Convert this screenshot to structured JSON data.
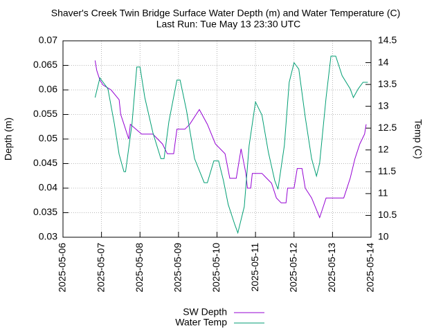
{
  "chart_data": {
    "type": "line",
    "title": "Shaver's Creek Twin Bridge Surface Water Depth (m) and Water Temperature (C)",
    "subtitle": "Last Run: Tue May 13 23:30 UTC",
    "y_label": "Depth (m)",
    "y2_label": "Temp (C)",
    "xlim": [
      "2025-05-06",
      "2025-05-14"
    ],
    "xticks": [
      "2025-05-06",
      "2025-05-07",
      "2025-05-08",
      "2025-05-09",
      "2025-05-10",
      "2025-05-11",
      "2025-05-12",
      "2025-05-13",
      "2025-05-14"
    ],
    "ylim": [
      0.03,
      0.07
    ],
    "yticks": [
      0.03,
      0.035,
      0.04,
      0.045,
      0.05,
      0.055,
      0.06,
      0.065,
      0.07
    ],
    "y2lim": [
      10,
      14.5
    ],
    "y2ticks": [
      10,
      10.5,
      11,
      11.5,
      12,
      12.5,
      13,
      13.5,
      14,
      14.5
    ],
    "grid": true,
    "legend": "bottom",
    "series": [
      {
        "name": "SW Depth",
        "color": "#9400d3",
        "x": [
          "2025-05-06 20:00",
          "2025-05-06 21:00",
          "2025-05-06 23:00",
          "2025-05-07 01:00",
          "2025-05-07 06:00",
          "2025-05-07 11:00",
          "2025-05-07 12:00",
          "2025-05-07 14:00",
          "2025-05-07 17:00",
          "2025-05-07 18:00",
          "2025-05-08 01:00",
          "2025-05-08 08:00",
          "2025-05-08 14:00",
          "2025-05-08 17:00",
          "2025-05-08 21:00",
          "2025-05-08 23:00",
          "2025-05-09 04:00",
          "2025-05-09 07:00",
          "2025-05-09 13:00",
          "2025-05-09 18:00",
          "2025-05-09 23:00",
          "2025-05-10 05:00",
          "2025-05-10 08:00",
          "2025-05-10 12:00",
          "2025-05-10 15:00",
          "2025-05-10 18:00",
          "2025-05-10 19:00",
          "2025-05-10 21:00",
          "2025-05-10 22:00",
          "2025-05-11 04:00",
          "2025-05-11 10:00",
          "2025-05-11 13:00",
          "2025-05-11 16:00",
          "2025-05-11 19:00",
          "2025-05-11 20:00",
          "2025-05-12 00:00",
          "2025-05-12 02:00",
          "2025-05-12 05:00",
          "2025-05-12 07:00",
          "2025-05-12 11:00",
          "2025-05-12 16:00",
          "2025-05-12 18:00",
          "2025-05-12 20:00",
          "2025-05-13 07:00",
          "2025-05-13 11:00",
          "2025-05-13 14:00",
          "2025-05-13 17:00",
          "2025-05-13 20:00",
          "2025-05-13 21:00"
        ],
        "values": [
          0.066,
          0.064,
          0.062,
          0.061,
          0.06,
          0.058,
          0.055,
          0.053,
          0.05,
          0.053,
          0.051,
          0.051,
          0.049,
          0.047,
          0.047,
          0.052,
          0.052,
          0.053,
          0.056,
          0.053,
          0.049,
          0.047,
          0.042,
          0.042,
          0.048,
          0.043,
          0.04,
          0.04,
          0.043,
          0.043,
          0.041,
          0.038,
          0.037,
          0.037,
          0.04,
          0.04,
          0.044,
          0.044,
          0.04,
          0.038,
          0.034,
          0.036,
          0.038,
          0.038,
          0.042,
          0.046,
          0.049,
          0.051,
          0.053
        ]
      },
      {
        "name": "Water Temp",
        "color": "#009e73",
        "axis": "y2",
        "x": [
          "2025-05-06 20:00",
          "2025-05-06 23:00",
          "2025-05-07 04:00",
          "2025-05-07 08:00",
          "2025-05-07 11:00",
          "2025-05-07 14:00",
          "2025-05-07 15:00",
          "2025-05-07 19:00",
          "2025-05-07 22:00",
          "2025-05-08 00:00",
          "2025-05-08 03:00",
          "2025-05-08 08:00",
          "2025-05-08 13:00",
          "2025-05-08 15:00",
          "2025-05-08 18:00",
          "2025-05-08 23:00",
          "2025-05-09 01:00",
          "2025-05-09 05:00",
          "2025-05-09 10:00",
          "2025-05-09 16:00",
          "2025-05-09 18:00",
          "2025-05-09 22:00",
          "2025-05-10 01:00",
          "2025-05-10 04:00",
          "2025-05-10 07:00",
          "2025-05-10 11:00",
          "2025-05-10 13:00",
          "2025-05-10 17:00",
          "2025-05-10 20:00",
          "2025-05-11 00:00",
          "2025-05-11 04:00",
          "2025-05-11 08:00",
          "2025-05-11 12:00",
          "2025-05-11 14:00",
          "2025-05-11 18:00",
          "2025-05-11 21:00",
          "2025-05-12 00:00",
          "2025-05-12 03:00",
          "2025-05-12 07:00",
          "2025-05-12 11:00",
          "2025-05-12 14:00",
          "2025-05-12 16:00",
          "2025-05-12 20:00",
          "2025-05-12 23:00",
          "2025-05-13 02:00",
          "2025-05-13 06:00",
          "2025-05-13 11:00",
          "2025-05-13 13:00",
          "2025-05-13 16:00",
          "2025-05-13 19:00",
          "2025-05-13 22:00"
        ],
        "values": [
          13.2,
          13.65,
          13.4,
          12.6,
          11.9,
          11.5,
          11.5,
          12.6,
          13.9,
          13.9,
          13.2,
          12.4,
          11.8,
          11.8,
          12.65,
          13.6,
          13.6,
          12.9,
          11.8,
          11.25,
          11.25,
          11.75,
          11.75,
          11.3,
          10.75,
          10.3,
          10.1,
          10.7,
          12.1,
          13.1,
          12.8,
          11.95,
          11.3,
          11.1,
          12.1,
          13.55,
          14.0,
          13.85,
          12.75,
          11.8,
          11.4,
          11.7,
          13.2,
          14.15,
          14.15,
          13.7,
          13.4,
          13.2,
          13.4,
          13.55,
          13.55
        ]
      }
    ]
  }
}
